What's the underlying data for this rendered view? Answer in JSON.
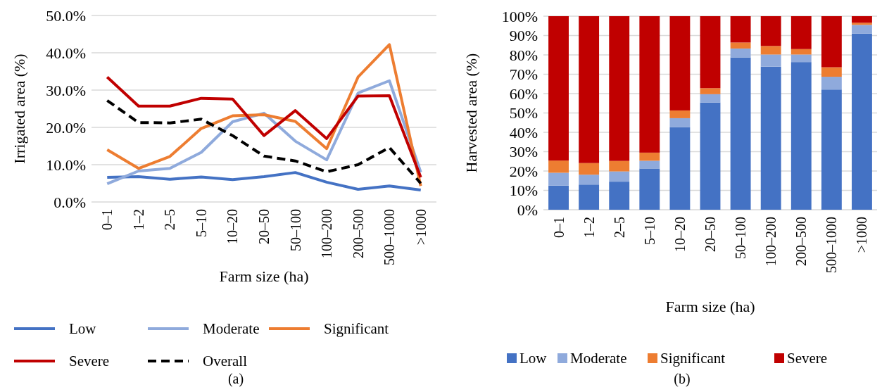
{
  "chart_data": [
    {
      "type": "line",
      "xlabel": "Farm size (ha)",
      "ylabel": "Irrigated area (%)",
      "annotations": [
        "(a)"
      ],
      "categories": [
        "0–1",
        "1–2",
        "2–5",
        "5–10",
        "10–20",
        "20–50",
        "50–100",
        "100–200",
        "200–500",
        "500–1000",
        ">1000"
      ],
      "ylim": [
        0,
        50
      ],
      "yticks": [
        {
          "value": 0,
          "label": "0.0%"
        },
        {
          "value": 10,
          "label": "10.0%"
        },
        {
          "value": 20,
          "label": "20.0%"
        },
        {
          "value": 30,
          "label": "30.0%"
        },
        {
          "value": 40,
          "label": "40.0%"
        },
        {
          "value": 50,
          "label": "50.0%"
        }
      ],
      "grid": "y",
      "legend": "bottom",
      "line_style": "solid",
      "series": [
        {
          "name": "Low",
          "color": "#4472c4",
          "values": [
            6.6,
            6.8,
            6.1,
            6.7,
            6.0,
            6.8,
            7.9,
            5.3,
            3.4,
            4.3,
            3.2
          ]
        },
        {
          "name": "Moderate",
          "color": "#8faadc",
          "values": [
            4.9,
            8.3,
            9.0,
            13.3,
            21.5,
            23.8,
            16.3,
            11.3,
            29.2,
            32.5,
            8.0
          ]
        },
        {
          "name": "Significant",
          "color": "#ed7d31",
          "values": [
            14.0,
            9.0,
            12.2,
            19.7,
            23.1,
            23.4,
            21.6,
            14.3,
            33.5,
            42.2,
            4.3
          ]
        },
        {
          "name": "Severe",
          "color": "#c00000",
          "values": [
            33.5,
            25.7,
            25.7,
            27.8,
            27.6,
            17.8,
            24.5,
            17.0,
            28.4,
            28.5,
            6.6
          ]
        },
        {
          "name": "Overall",
          "color": "#000000",
          "line_style": "dashed",
          "values": [
            27.2,
            21.3,
            21.2,
            22.2,
            17.8,
            12.3,
            11.0,
            8.1,
            10.0,
            14.6,
            5.0
          ]
        }
      ]
    },
    {
      "type": "bar",
      "stacked": true,
      "xlabel": "Farm size (ha)",
      "ylabel": "Harvested area (%)",
      "annotations": [
        "(b)"
      ],
      "categories": [
        "0–1",
        "1–2",
        "2–5",
        "5–10",
        "10–20",
        "20–50",
        "50–100",
        "100–200",
        "200–500",
        "500–1000",
        ">1000"
      ],
      "ylim": [
        0,
        100
      ],
      "yticks": [
        {
          "value": 0,
          "label": "0%"
        },
        {
          "value": 10,
          "label": "10%"
        },
        {
          "value": 20,
          "label": "20%"
        },
        {
          "value": 30,
          "label": "30%"
        },
        {
          "value": 40,
          "label": "40%"
        },
        {
          "value": 50,
          "label": "50%"
        },
        {
          "value": 60,
          "label": "60%"
        },
        {
          "value": 70,
          "label": "70%"
        },
        {
          "value": 80,
          "label": "80%"
        },
        {
          "value": 90,
          "label": "90%"
        },
        {
          "value": 100,
          "label": "100%"
        }
      ],
      "grid": "y",
      "legend": "bottom",
      "series": [
        {
          "name": "Low",
          "color": "#4472c4",
          "values": [
            12.5,
            13.0,
            14.5,
            21.3,
            42.7,
            55.4,
            78.7,
            73.9,
            76.3,
            62.1,
            91.0
          ]
        },
        {
          "name": "Moderate",
          "color": "#8faadc",
          "values": [
            6.6,
            5.1,
            5.3,
            4.0,
            4.6,
            4.3,
            4.6,
            6.3,
            3.9,
            6.6,
            4.5
          ]
        },
        {
          "name": "Significant",
          "color": "#ed7d31",
          "values": [
            6.3,
            6.0,
            5.4,
            4.2,
            4.0,
            3.1,
            3.1,
            4.4,
            2.8,
            4.9,
            1.1
          ]
        },
        {
          "name": "Severe",
          "color": "#c00000",
          "values": [
            74.6,
            75.9,
            74.8,
            70.5,
            48.7,
            37.2,
            13.6,
            15.4,
            17.0,
            26.4,
            3.4
          ]
        }
      ]
    }
  ]
}
